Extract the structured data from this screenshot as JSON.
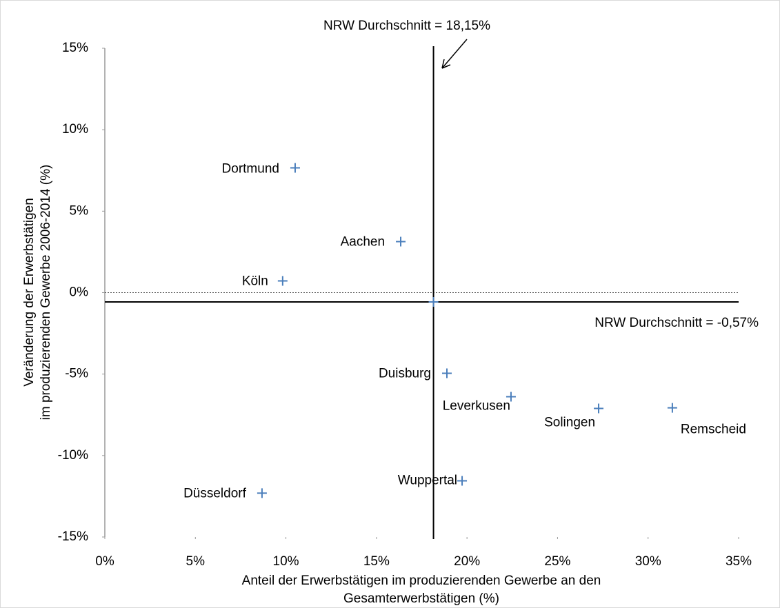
{
  "chart_data": {
    "type": "scatter",
    "xlabel": [
      "Anteil der Erwerbstätigen im produzierenden Gewerbe an den",
      "Gesamterwerbstätigen (%)"
    ],
    "ylabel": [
      "Veränderung der Erwerbstätigen",
      "im produzierenden Gewerbe 2006-2014 (%)"
    ],
    "labels": [
      "Dortmund",
      "Aachen",
      "Köln",
      "Duisburg",
      "Leverkusen",
      "Solingen",
      "Remscheid",
      "Wuppertal",
      "Düsseldorf"
    ],
    "x": [
      10.51,
      16.34,
      9.82,
      18.89,
      22.43,
      27.27,
      31.34,
      19.73,
      8.68
    ],
    "y": [
      7.66,
      3.13,
      0.72,
      -4.95,
      -6.39,
      -7.11,
      -7.07,
      -11.55,
      -12.31
    ],
    "color": "#4a7ebb",
    "reference_lines": {
      "x": 18.15,
      "y": -0.57,
      "x_label": "NRW Durchschnitt = 18,15%",
      "y_label": "NRW Durchschnitt = -0,57%"
    },
    "xlim": [
      0,
      35
    ],
    "xticks": [
      {
        "value": 0,
        "label": "0%"
      },
      {
        "value": 5,
        "label": "5%"
      },
      {
        "value": 10,
        "label": "10%"
      },
      {
        "value": 15,
        "label": "15%"
      },
      {
        "value": 20,
        "label": "20%"
      },
      {
        "value": 25,
        "label": "25%"
      },
      {
        "value": 30,
        "label": "30%"
      },
      {
        "value": 35,
        "label": "35%"
      }
    ],
    "ylim": [
      -15,
      15
    ],
    "yticks": [
      {
        "value": -15,
        "label": "-15%"
      },
      {
        "value": -10,
        "label": "-10%"
      },
      {
        "value": -5,
        "label": "-5%"
      },
      {
        "value": 0,
        "label": "0%"
      },
      {
        "value": 5,
        "label": "5%"
      },
      {
        "value": 10,
        "label": "10%"
      },
      {
        "value": 15,
        "label": "15%"
      }
    ]
  }
}
